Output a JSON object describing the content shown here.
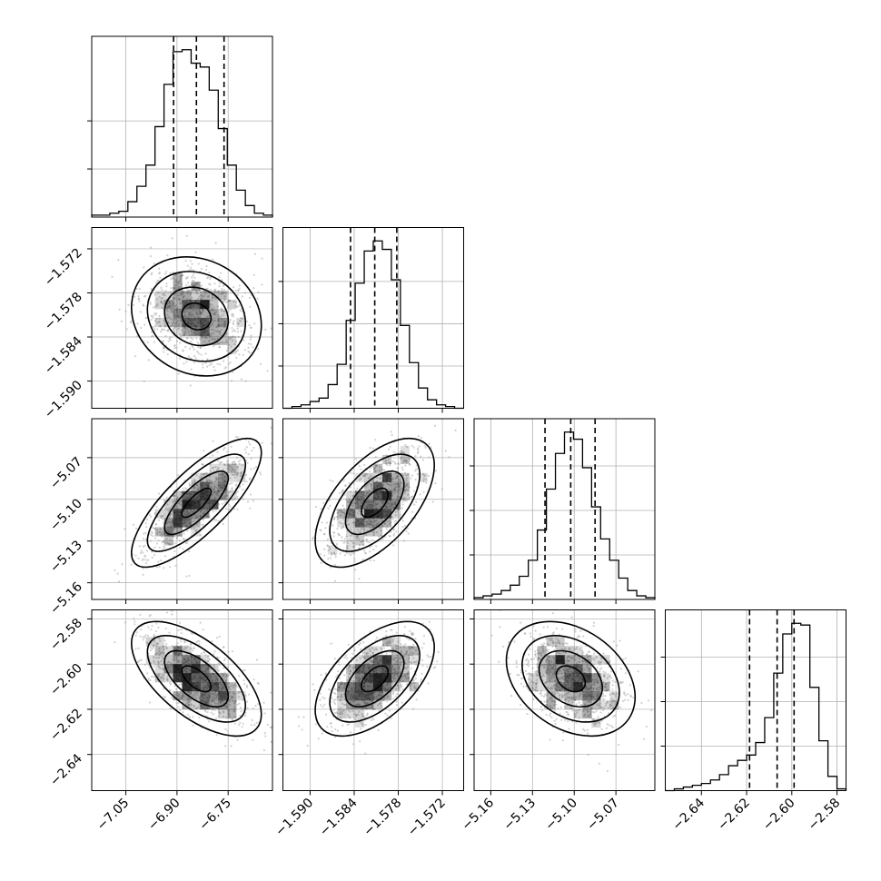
{
  "chart_data": {
    "type": "corner",
    "title": "",
    "parameters": 4,
    "style": {
      "hist_color": "#000000",
      "grid_color": "#b0b0b0",
      "frame_color": "#000000",
      "point_color": "#9a9a9a",
      "density_color": "#000000",
      "contour_color": "#000000"
    },
    "axes": [
      {
        "range": [
          -7.15,
          -6.62
        ],
        "ticks": [
          -7.05,
          -6.9,
          -6.75
        ],
        "tick_labels": [
          "−7.05",
          "−6.90",
          "−6.75"
        ]
      },
      {
        "range": [
          -1.5937,
          -1.5691
        ],
        "ticks": [
          -1.59,
          -1.584,
          -1.578,
          -1.572
        ],
        "tick_labels": [
          "−1.590",
          "−1.584",
          "−1.578",
          "−1.572"
        ]
      },
      {
        "range": [
          -5.172,
          -5.042
        ],
        "ticks": [
          -5.16,
          -5.13,
          -5.1,
          -5.07
        ],
        "tick_labels": [
          "−5.16",
          "−5.13",
          "−5.10",
          "−5.07"
        ]
      },
      {
        "range": [
          -2.656,
          -2.576
        ],
        "ticks": [
          -2.64,
          -2.62,
          -2.6,
          -2.58
        ],
        "tick_labels": [
          "−2.64",
          "−2.62",
          "−2.60",
          "−2.58"
        ]
      }
    ],
    "histograms": [
      {
        "param": 0,
        "counts": [
          1,
          1,
          2,
          3,
          8,
          16,
          27,
          47,
          69,
          86,
          87,
          80,
          78,
          66,
          46,
          27,
          14,
          6,
          2,
          1
        ],
        "hist_ticks": [
          25,
          50
        ],
        "quantiles": [
          -6.91,
          -6.843,
          -6.762
        ]
      },
      {
        "param": 1,
        "counts": [
          0,
          1,
          2,
          4,
          6,
          14,
          26,
          52,
          74,
          93,
          99,
          94,
          76,
          49,
          27,
          12,
          5,
          2,
          1,
          0
        ],
        "hist_ticks": [
          25,
          50,
          75
        ],
        "quantiles": [
          -1.5845,
          -1.5812,
          -1.5782
        ]
      },
      {
        "param": 2,
        "counts": [
          1,
          2,
          3,
          5,
          8,
          13,
          22,
          39,
          62,
          82,
          94,
          90,
          74,
          52,
          34,
          22,
          12,
          5,
          2,
          1
        ],
        "hist_ticks": [
          25,
          50,
          75
        ],
        "quantiles": [
          -5.121,
          -5.1025,
          -5.085
        ]
      },
      {
        "param": 3,
        "counts": [
          0,
          1,
          2,
          3,
          4,
          6,
          9,
          14,
          17,
          20,
          27,
          41,
          66,
          88,
          94,
          93,
          58,
          28,
          8,
          1
        ],
        "hist_ticks": [
          25,
          50,
          75
        ],
        "quantiles": [
          -2.6187,
          -2.6065,
          -2.599
        ]
      }
    ],
    "correlations": {
      "0-1": -0.15,
      "0-2": 0.78,
      "0-3": -0.62,
      "1-2": 0.58,
      "1-3": 0.55,
      "2-3": -0.32
    }
  }
}
